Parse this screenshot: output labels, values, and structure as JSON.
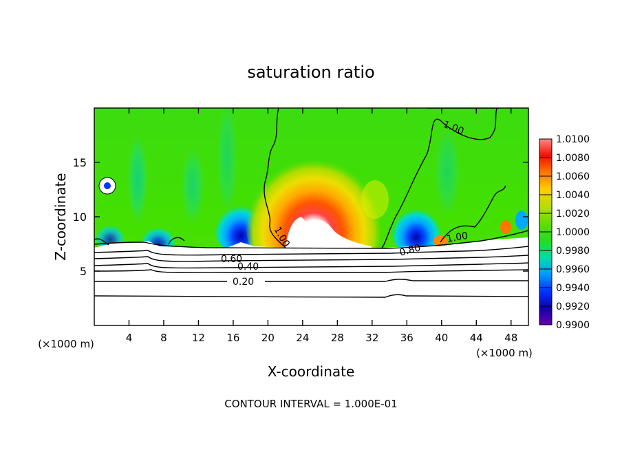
{
  "chart_data": {
    "type": "heatmap",
    "title": "saturation ratio",
    "xlabel": "X-coordinate",
    "ylabel": "Z-coordinate",
    "x_unit_label": "(×1000 m)",
    "x_unit_label_right": "(×1000 m)",
    "footer": "CONTOUR INTERVAL = 1.000E-01",
    "xlim": [
      0,
      50
    ],
    "ylim": [
      0,
      20
    ],
    "x_ticks": [
      4,
      8,
      12,
      16,
      20,
      24,
      28,
      32,
      36,
      40,
      44,
      48
    ],
    "y_ticks": [
      5,
      10,
      15
    ],
    "colorbar": {
      "labels": [
        "1.0100",
        "1.0080",
        "1.0060",
        "1.0040",
        "1.0020",
        "1.0000",
        "0.9980",
        "0.9960",
        "0.9940",
        "0.9920",
        "0.9900"
      ],
      "range": [
        0.99,
        1.01
      ]
    },
    "contour_labels": [
      {
        "text": "1.00",
        "x": 42.5,
        "z": 18.2
      },
      {
        "text": "1.00",
        "x": 21.3,
        "z": 8.6
      },
      {
        "text": "1.00",
        "x": 41.7,
        "z": 8.1
      },
      {
        "text": "0.80",
        "x": 37.0,
        "z": 6.8
      },
      {
        "text": "0.60",
        "x": 16.2,
        "z": 6.2
      },
      {
        "text": "0.40",
        "x": 17.8,
        "z": 5.4
      },
      {
        "text": "0.20",
        "x": 17.7,
        "z": 4.0
      }
    ],
    "features": [
      {
        "name": "supersaturated plume",
        "x_center": 24.5,
        "z_peak": 11.5,
        "max_value": 1.01
      },
      {
        "name": "subsaturated dip",
        "x_center": 17.5,
        "z": 9.0,
        "min_value": 0.992
      },
      {
        "name": "subsaturated dip",
        "x_center": 35.5,
        "z": 9.0,
        "min_value": 0.993
      }
    ],
    "colors": {
      "background_field": "#44dd00",
      "colorbar": [
        "#6600aa",
        "#1100aa",
        "#0033ff",
        "#0099ff",
        "#00ddaa",
        "#22dd22",
        "#66dd00",
        "#bbdd00",
        "#ffcc00",
        "#ff7700",
        "#ee1100",
        "#ff8888"
      ]
    }
  }
}
